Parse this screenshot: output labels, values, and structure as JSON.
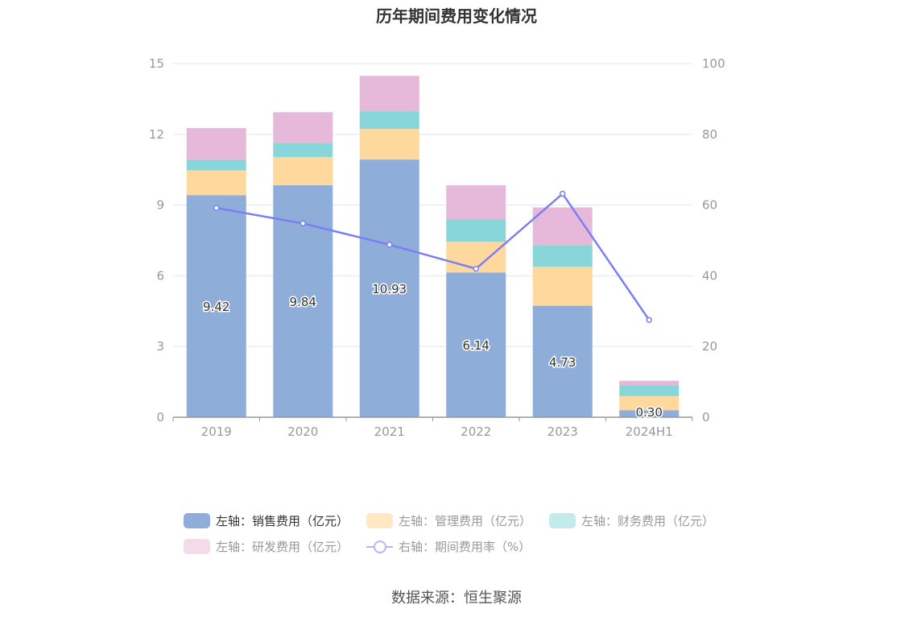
{
  "title": "历年期间费用变化情况",
  "source": "数据来源：恒生聚源",
  "legend": [
    {
      "label": "左轴：销售费用（亿元）",
      "color": "#8fadd9",
      "kind": "bar",
      "active": true
    },
    {
      "label": "左轴：管理费用（亿元）",
      "color": "#ffe8c2",
      "kind": "bar",
      "active": false
    },
    {
      "label": "左轴：财务费用（亿元）",
      "color": "#c3ebeb",
      "kind": "bar",
      "active": false
    },
    {
      "label": "左轴：研发费用（亿元）",
      "color": "#f4dbe9",
      "kind": "bar",
      "active": false
    },
    {
      "label": "右轴：期间费用率（%）",
      "color": "#b5b8f5",
      "kind": "line",
      "active": false
    }
  ],
  "chart_data": {
    "type": "bar",
    "categories": [
      "2019",
      "2020",
      "2021",
      "2022",
      "2023",
      "2024H1"
    ],
    "y_left": {
      "ticks": [
        "0",
        "3",
        "6",
        "9",
        "12",
        "15"
      ],
      "ylim": [
        0,
        15
      ]
    },
    "y_right": {
      "ticks": [
        "0",
        "20",
        "40",
        "60",
        "80",
        "100"
      ],
      "ylim": [
        0,
        100
      ]
    },
    "grid": true,
    "legend_position": "bottom",
    "series": [
      {
        "name": "左轴：销售费用（亿元）",
        "axis": "left",
        "color": "#8fadd9",
        "values": [
          9.42,
          9.84,
          10.93,
          6.14,
          4.73,
          0.3
        ],
        "labels": [
          "9.42",
          "9.84",
          "10.93",
          "6.14",
          "4.73",
          "0.30"
        ]
      },
      {
        "name": "左轴：管理费用（亿元）",
        "axis": "left",
        "color": "#ffd89e",
        "values": [
          1.05,
          1.2,
          1.3,
          1.3,
          1.65,
          0.6
        ]
      },
      {
        "name": "左轴：财务费用（亿元）",
        "axis": "left",
        "color": "#88d6d9",
        "values": [
          0.45,
          0.6,
          0.75,
          0.95,
          0.92,
          0.45
        ]
      },
      {
        "name": "左轴：研发费用（亿元）",
        "axis": "left",
        "color": "#e6b8d9",
        "values": [
          1.35,
          1.3,
          1.5,
          1.45,
          1.6,
          0.2
        ]
      },
      {
        "name": "右轴：期间费用率（%）",
        "axis": "right",
        "type": "line",
        "color": "#7b7ff2",
        "values": [
          59.2,
          54.8,
          48.8,
          42.0,
          63.2,
          27.5
        ]
      }
    ]
  }
}
